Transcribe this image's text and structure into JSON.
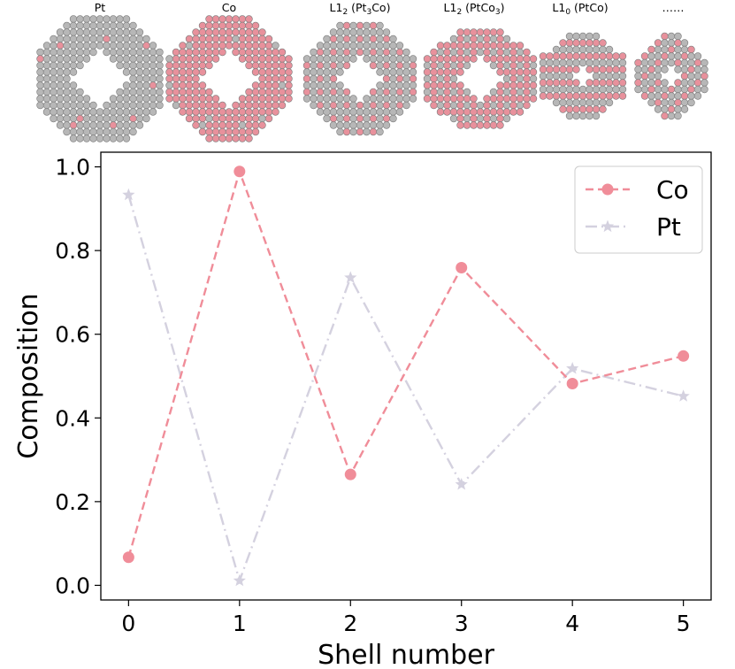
{
  "clusters": {
    "labels": [
      {
        "main": "Pt",
        "parts": []
      },
      {
        "main": "Co",
        "parts": []
      },
      {
        "main": "",
        "parts": [
          {
            "t": "L1"
          },
          {
            "t": "2",
            "sub": true
          },
          {
            "t": " (Pt"
          },
          {
            "t": "3",
            "sub": true
          },
          {
            "t": "Co)"
          }
        ]
      },
      {
        "main": "",
        "parts": [
          {
            "t": "L1"
          },
          {
            "t": "2",
            "sub": true
          },
          {
            "t": " (PtCo"
          },
          {
            "t": "3",
            "sub": true
          },
          {
            "t": ")"
          }
        ]
      },
      {
        "main": "",
        "parts": [
          {
            "t": "L1"
          },
          {
            "t": "0",
            "sub": true
          },
          {
            "t": " (PtCo)"
          }
        ]
      },
      {
        "main": "……",
        "parts": []
      }
    ],
    "colors": {
      "pt": "#b7b7b7",
      "co": "#e8919c",
      "edge": "#7c7c7c",
      "void": "#ffffff"
    }
  },
  "chart_data": {
    "type": "line",
    "xlabel": "Shell number",
    "ylabel": "Composition",
    "x": [
      0,
      1,
      2,
      3,
      4,
      5
    ],
    "xticks": [
      "0",
      "1",
      "2",
      "3",
      "4",
      "5"
    ],
    "yticks": [
      "0.0",
      "0.2",
      "0.4",
      "0.6",
      "0.8",
      "1.0"
    ],
    "xlim": [
      -0.25,
      5.25
    ],
    "ylim": [
      -0.035,
      1.035
    ],
    "legend_position": "top-right",
    "series": [
      {
        "name": "Co",
        "values": [
          0.067,
          0.989,
          0.265,
          0.759,
          0.482,
          0.548
        ],
        "color": "#f08d99",
        "dash": "dashed",
        "marker": "circle"
      },
      {
        "name": "Pt",
        "values": [
          0.933,
          0.011,
          0.735,
          0.241,
          0.518,
          0.452
        ],
        "color": "#d4d1df",
        "dash": "dashdot",
        "marker": "star"
      }
    ]
  }
}
